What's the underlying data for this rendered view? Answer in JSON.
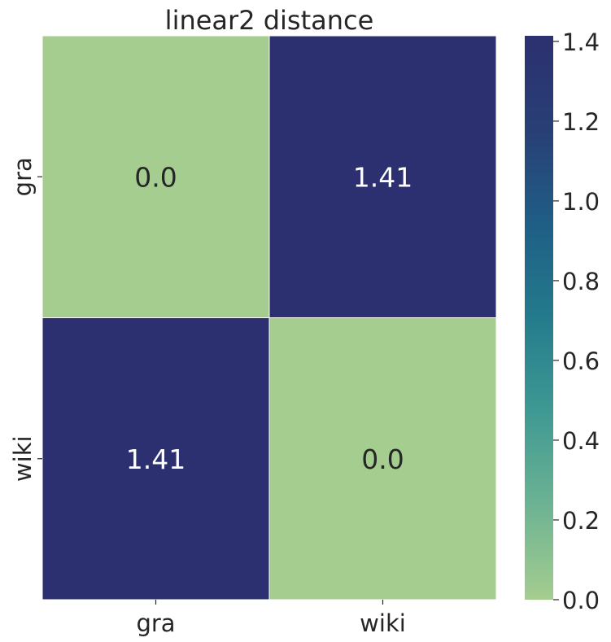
{
  "chart_data": {
    "type": "heatmap",
    "title": "linear2 distance",
    "xlabel": "",
    "ylabel": "",
    "x_categories": [
      "gra",
      "wiki"
    ],
    "y_categories": [
      "gra",
      "wiki"
    ],
    "values": [
      [
        0.0,
        1.41
      ],
      [
        1.41,
        0.0
      ]
    ],
    "cell_labels": [
      [
        "0.0",
        "1.41"
      ],
      [
        "1.41",
        "0.0"
      ]
    ],
    "colorbar": {
      "range": [
        0.0,
        1.414
      ],
      "ticks": [
        0.0,
        0.2,
        0.4,
        0.6,
        0.8,
        1.0,
        1.2,
        1.4
      ],
      "tick_labels": [
        "0.0",
        "0.2",
        "0.4",
        "0.6",
        "0.8",
        "1.0",
        "1.2",
        "1.4"
      ]
    },
    "colormap": [
      "#a5cd8f",
      "#6db393",
      "#3f9993",
      "#247b8c",
      "#1f5e86",
      "#283f75",
      "#2c3070"
    ],
    "grid": false
  }
}
